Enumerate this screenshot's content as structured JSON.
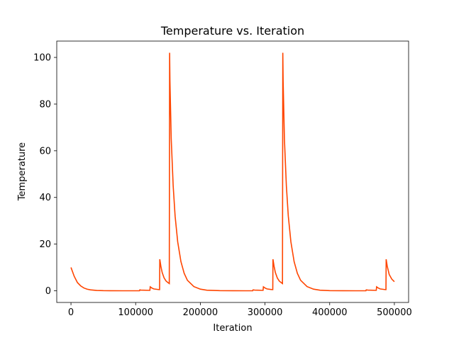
{
  "chart_data": {
    "type": "line",
    "title": "Temperature vs. Iteration",
    "xlabel": "Iteration",
    "ylabel": "Temperature",
    "xlim": [
      -22000,
      522000
    ],
    "ylim": [
      -5,
      107
    ],
    "x_ticks": [
      0,
      100000,
      200000,
      300000,
      400000,
      500000
    ],
    "x_tick_labels": [
      "0",
      "100000",
      "200000",
      "300000",
      "400000",
      "500000"
    ],
    "y_ticks": [
      0,
      20,
      40,
      60,
      80,
      100
    ],
    "y_tick_labels": [
      "0",
      "20",
      "40",
      "60",
      "80",
      "100"
    ],
    "grid": false,
    "line_color": "#ff4500",
    "series": [
      {
        "x": [
          0,
          5000,
          10000,
          15000,
          20000,
          25000,
          30000,
          40000,
          50000,
          60000,
          80000,
          100000,
          106000,
          106500,
          108000,
          120000,
          122000,
          122500,
          125000,
          128000,
          136000,
          137000,
          137300,
          139000,
          141000,
          144000,
          147000,
          150000,
          152000,
          152500,
          153000,
          155000,
          158000,
          161000,
          165000,
          170000,
          175000,
          180000,
          190000,
          200000,
          210000,
          230000,
          250000,
          270000,
          281000,
          281500,
          284000,
          296000,
          297000,
          297500,
          300000,
          303000,
          311000,
          312000,
          312300,
          314000,
          316000,
          319000,
          322000,
          325000,
          327000,
          327500,
          328000,
          330000,
          333000,
          336000,
          340000,
          345000,
          350000,
          355000,
          365000,
          375000,
          385000,
          400000,
          420000,
          440000,
          456000,
          456500,
          459000,
          471000,
          472000,
          472500,
          475000,
          478000,
          486000,
          487000,
          487300,
          489000,
          492000,
          496000,
          500000
        ],
        "y": [
          10,
          6.2,
          3.5,
          2.1,
          1.2,
          0.7,
          0.4,
          0.15,
          0.05,
          0.02,
          0.01,
          0.01,
          0.01,
          0.4,
          0.3,
          0.2,
          0.2,
          1.7,
          1.2,
          0.8,
          0.5,
          0.5,
          13.5,
          10.5,
          7.8,
          5.5,
          4.2,
          3.5,
          3.1,
          102,
          90,
          65,
          45,
          32,
          21,
          12.5,
          7.5,
          4.5,
          1.8,
          0.7,
          0.25,
          0.05,
          0.02,
          0.01,
          0.01,
          0.4,
          0.3,
          0.2,
          0.2,
          1.7,
          1.2,
          0.8,
          0.5,
          0.5,
          13.5,
          10.5,
          7.8,
          5.5,
          4.2,
          3.5,
          3.1,
          102,
          90,
          65,
          45,
          32,
          21,
          12.5,
          7.5,
          4.5,
          1.8,
          0.7,
          0.25,
          0.05,
          0.02,
          0.01,
          0.01,
          0.4,
          0.3,
          0.2,
          0.2,
          1.7,
          1.2,
          0.8,
          0.5,
          0.5,
          13.5,
          10.5,
          7.0,
          5.0,
          3.9
        ]
      }
    ]
  }
}
